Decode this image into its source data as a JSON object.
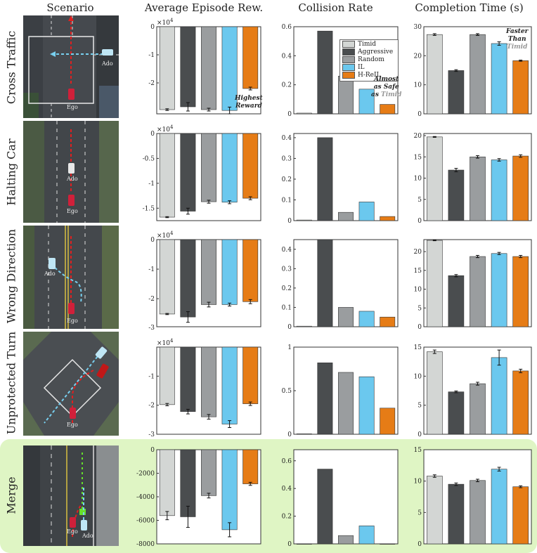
{
  "column_headers": [
    "Scenario",
    "Average Episode Rew.",
    "Collision Rate",
    "Completion Time (s)"
  ],
  "row_labels": [
    "Cross Traffic",
    "Halting Car",
    "Wrong Direction",
    "Unprotected Turn",
    "Merge"
  ],
  "scene_labels": {
    "ego": "Ego",
    "ado": "Ado"
  },
  "legend": [
    "Timid",
    "Aggressive",
    "Random",
    "IL",
    "H-ReIL"
  ],
  "colors": {
    "Timid": "#d3d6d4",
    "Aggressive": "#4a4d4f",
    "Random": "#9a9d9f",
    "IL": "#6bc8ee",
    "H-ReIL": "#e67c16",
    "highlight_bg": "#dff5c4"
  },
  "annotations": {
    "highest_reward": [
      "Highest",
      "Reward"
    ],
    "almost_safe": [
      "Almost",
      "as Safe",
      "as "
    ],
    "almost_safe_word": "Timid",
    "faster": [
      "Faster",
      "Than"
    ],
    "faster_word": "Timid"
  },
  "chart_data": [
    {
      "type": "bar",
      "title": "Average Episode Rew.",
      "row": "Cross Traffic",
      "multiplier": "×10",
      "multiplier_exp": "4",
      "categories": [
        "Timid",
        "Aggressive",
        "Random",
        "IL",
        "H-ReIL"
      ],
      "values": [
        -2.95,
        -2.85,
        -2.95,
        -2.98,
        -2.2
      ],
      "errors": [
        0.03,
        0.15,
        0.05,
        0.12,
        0.05
      ],
      "ylim": [
        -3.1,
        0
      ],
      "yticks": [
        0,
        -1,
        -2
      ],
      "ytick_labels": [
        "0",
        "-1",
        "-2"
      ]
    },
    {
      "type": "bar",
      "title": "Collision Rate",
      "row": "Cross Traffic",
      "categories": [
        "Timid",
        "Aggressive",
        "Random",
        "IL",
        "H-ReIL"
      ],
      "values": [
        0.005,
        0.57,
        0.26,
        0.17,
        0.065
      ],
      "errors": [
        0,
        0,
        0,
        0,
        0
      ],
      "ylim": [
        0,
        0.6
      ],
      "yticks": [
        0,
        0.2,
        0.4,
        0.6
      ],
      "ytick_labels": [
        "0",
        "0.2",
        "0.4",
        "0.6"
      ]
    },
    {
      "type": "bar",
      "title": "Completion Time (s)",
      "row": "Cross Traffic",
      "categories": [
        "Timid",
        "Aggressive",
        "Random",
        "IL",
        "H-ReIL"
      ],
      "values": [
        27.3,
        14.9,
        27.3,
        24.2,
        18.3
      ],
      "errors": [
        0.3,
        0.3,
        0.3,
        0.6,
        0.2
      ],
      "ylim": [
        0,
        30
      ],
      "yticks": [
        0,
        10,
        20,
        30
      ],
      "ytick_labels": [
        "0",
        "10",
        "20",
        "30"
      ]
    },
    {
      "type": "bar",
      "title": "Average Episode Rew.",
      "row": "Halting Car",
      "multiplier": "×10",
      "multiplier_exp": "4",
      "categories": [
        "Timid",
        "Aggressive",
        "Random",
        "IL",
        "H-ReIL"
      ],
      "values": [
        -1.68,
        -1.56,
        -1.37,
        -1.38,
        -1.3
      ],
      "errors": [
        0.01,
        0.06,
        0.03,
        0.03,
        0.03
      ],
      "ylim": [
        -1.75,
        0
      ],
      "yticks": [
        0,
        -0.5,
        -1,
        -1.5
      ],
      "ytick_labels": [
        "0",
        "-0.5",
        "-1",
        "-1.5"
      ]
    },
    {
      "type": "bar",
      "title": "Collision Rate",
      "row": "Halting Car",
      "categories": [
        "Timid",
        "Aggressive",
        "Random",
        "IL",
        "H-ReIL"
      ],
      "values": [
        0.003,
        0.4,
        0.04,
        0.09,
        0.02
      ],
      "errors": [
        0,
        0,
        0,
        0,
        0
      ],
      "ylim": [
        0,
        0.42
      ],
      "yticks": [
        0,
        0.1,
        0.2,
        0.3,
        0.4
      ],
      "ytick_labels": [
        "0",
        "0.1",
        "0.2",
        "0.3",
        "0.4"
      ]
    },
    {
      "type": "bar",
      "title": "Completion Time (s)",
      "row": "Halting Car",
      "categories": [
        "Timid",
        "Aggressive",
        "Random",
        "IL",
        "H-ReIL"
      ],
      "values": [
        19.7,
        11.9,
        15.0,
        14.3,
        15.2
      ],
      "errors": [
        0.1,
        0.4,
        0.3,
        0.3,
        0.3
      ],
      "ylim": [
        0,
        20.5
      ],
      "yticks": [
        0,
        5,
        10,
        15,
        20
      ],
      "ytick_labels": [
        "0",
        "5",
        "10",
        "15",
        "20"
      ]
    },
    {
      "type": "bar",
      "title": "Average Episode Rew.",
      "row": "Wrong Direction",
      "multiplier": "×10",
      "multiplier_exp": "4",
      "categories": [
        "Timid",
        "Aggressive",
        "Random",
        "IL",
        "H-ReIL"
      ],
      "values": [
        -2.52,
        -2.62,
        -2.2,
        -2.2,
        -2.1
      ],
      "errors": [
        0.02,
        0.18,
        0.08,
        0.05,
        0.07
      ],
      "ylim": [
        -2.95,
        0
      ],
      "yticks": [
        0,
        -1,
        -2
      ],
      "ytick_labels": [
        "0",
        "-1",
        "-2"
      ],
      "ymin_label": "-3"
    },
    {
      "type": "bar",
      "title": "Collision Rate",
      "row": "Wrong Direction",
      "categories": [
        "Timid",
        "Aggressive",
        "Random",
        "IL",
        "H-ReIL"
      ],
      "values": [
        0.003,
        0.45,
        0.1,
        0.08,
        0.05
      ],
      "errors": [
        0,
        0,
        0,
        0,
        0
      ],
      "ylim": [
        0,
        0.45
      ],
      "yticks": [
        0,
        0.1,
        0.2,
        0.3,
        0.4
      ],
      "ytick_labels": [
        "0",
        "0.1",
        "0.2",
        "0.3",
        "0.4"
      ]
    },
    {
      "type": "bar",
      "title": "Completion Time (s)",
      "row": "Wrong Direction",
      "categories": [
        "Timid",
        "Aggressive",
        "Random",
        "IL",
        "H-ReIL"
      ],
      "values": [
        23.0,
        13.6,
        18.7,
        19.5,
        18.7
      ],
      "errors": [
        0.1,
        0.3,
        0.3,
        0.3,
        0.3
      ],
      "ylim": [
        0,
        23.2
      ],
      "yticks": [
        0,
        5,
        10,
        15,
        20
      ],
      "ytick_labels": [
        "0",
        "5",
        "10",
        "15",
        "20"
      ]
    },
    {
      "type": "bar",
      "title": "Average Episode Rew.",
      "row": "Unprotected Turn",
      "multiplier": "×10",
      "multiplier_exp": "4",
      "categories": [
        "Timid",
        "Aggressive",
        "Random",
        "IL",
        "H-ReIL"
      ],
      "values": [
        -1.98,
        -2.22,
        -2.4,
        -2.65,
        -1.95
      ],
      "errors": [
        0.04,
        0.08,
        0.08,
        0.12,
        0.06
      ],
      "ylim": [
        -3,
        0
      ],
      "yticks": [
        -1,
        -2,
        -3
      ],
      "ytick_labels": [
        "-1",
        "-2",
        "-3"
      ]
    },
    {
      "type": "bar",
      "title": "Collision Rate",
      "row": "Unprotected Turn",
      "categories": [
        "Timid",
        "Aggressive",
        "Random",
        "IL",
        "H-ReIL"
      ],
      "values": [
        0.005,
        0.82,
        0.71,
        0.66,
        0.3
      ],
      "errors": [
        0,
        0,
        0,
        0,
        0
      ],
      "ylim": [
        0,
        1
      ],
      "yticks": [
        0,
        0.5,
        1
      ],
      "ytick_labels": [
        "0",
        "0.5",
        "1"
      ]
    },
    {
      "type": "bar",
      "title": "Completion Time (s)",
      "row": "Unprotected Turn",
      "categories": [
        "Timid",
        "Aggressive",
        "Random",
        "IL",
        "H-ReIL"
      ],
      "values": [
        14.2,
        7.3,
        8.7,
        13.2,
        10.9
      ],
      "errors": [
        0.3,
        0.15,
        0.25,
        1.3,
        0.3
      ],
      "ylim": [
        0,
        15
      ],
      "yticks": [
        0,
        5,
        10,
        15
      ],
      "ytick_labels": [
        "0",
        "5",
        "10",
        "15"
      ]
    },
    {
      "type": "bar",
      "title": "Average Episode Rew.",
      "row": "Merge",
      "categories": [
        "Timid",
        "Aggressive",
        "Random",
        "IL",
        "H-ReIL"
      ],
      "values": [
        -5600,
        -5700,
        -3900,
        -6800,
        -2900
      ],
      "errors": [
        350,
        900,
        200,
        600,
        130
      ],
      "ylim": [
        -8000,
        0
      ],
      "yticks": [
        0,
        -2000,
        -4000,
        -6000,
        -8000
      ],
      "ytick_labels": [
        "0",
        "-2000",
        "-4000",
        "-6000",
        "-8000"
      ]
    },
    {
      "type": "bar",
      "title": "Collision Rate",
      "row": "Merge",
      "categories": [
        "Timid",
        "Aggressive",
        "Random",
        "IL",
        "H-ReIL"
      ],
      "values": [
        0,
        0.54,
        0.06,
        0.13,
        0
      ],
      "errors": [
        0,
        0,
        0,
        0,
        0
      ],
      "ylim": [
        0,
        0.68
      ],
      "yticks": [
        0,
        0.2,
        0.4,
        0.6
      ],
      "ytick_labels": [
        "0",
        "0.2",
        "0.4",
        "0.6"
      ]
    },
    {
      "type": "bar",
      "title": "Completion Time (s)",
      "row": "Merge",
      "categories": [
        "Timid",
        "Aggressive",
        "Random",
        "IL",
        "H-ReIL"
      ],
      "values": [
        10.8,
        9.5,
        10.1,
        11.9,
        9.1
      ],
      "errors": [
        0.2,
        0.2,
        0.2,
        0.3,
        0.15
      ],
      "ylim": [
        0,
        15
      ],
      "yticks": [
        0,
        5,
        10,
        15
      ],
      "ytick_labels": [
        "0",
        "5",
        "10",
        "15"
      ]
    }
  ]
}
